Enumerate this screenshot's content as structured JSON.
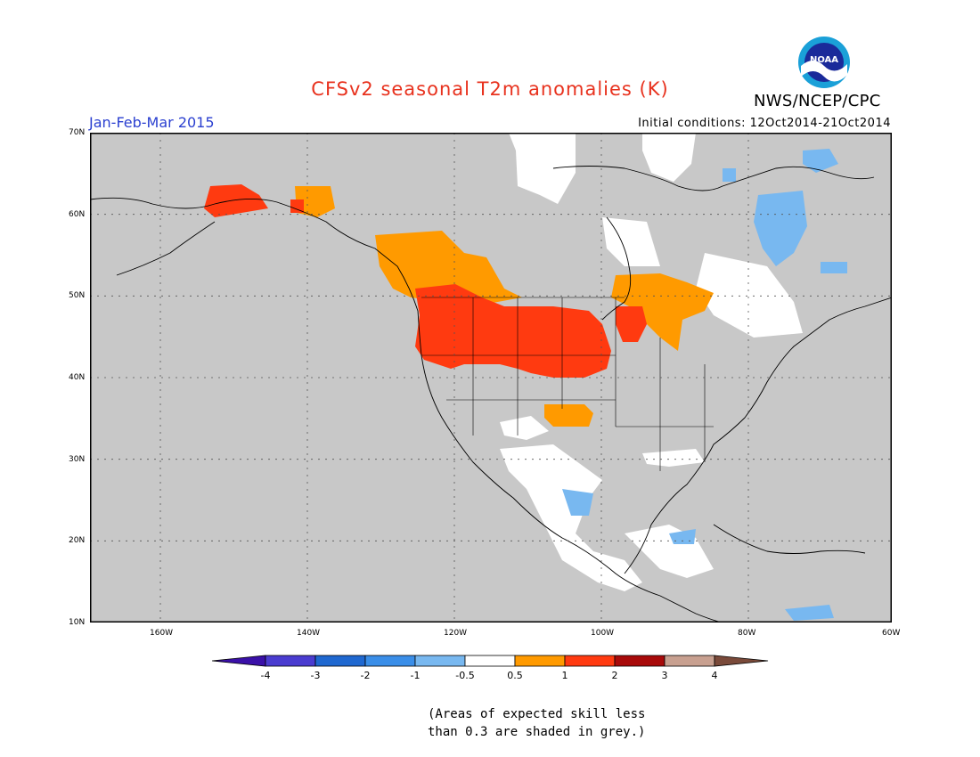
{
  "title": "CFSv2 seasonal T2m anomalies (K)",
  "period": "Jan-Feb-Mar 2015",
  "initial_conditions": "Initial conditions: 12Oct2014-21Oct2014",
  "agency": "NWS/NCEP/CPC",
  "logo_text": "NOAA",
  "lat_labels": [
    "70N",
    "60N",
    "50N",
    "40N",
    "30N",
    "20N",
    "10N"
  ],
  "lon_labels": [
    "160W",
    "140W",
    "120W",
    "100W",
    "80W",
    "60W"
  ],
  "colorbar": {
    "labels": [
      "-4",
      "-3",
      "-2",
      "-1",
      "-0.5",
      "0.5",
      "1",
      "2",
      "3",
      "4"
    ],
    "colors": [
      "#3a10a8",
      "#4a3cd0",
      "#1f68d0",
      "#3a8ee8",
      "#78b8f0",
      "#ffffff",
      "#ff9a00",
      "#ff3a10",
      "#a80a0a",
      "#c8a090",
      "#7a4a3a"
    ]
  },
  "note": {
    "line1": "(Areas of expected skill less",
    "line2": "than 0.3 are shaded in grey.)"
  },
  "colors": {
    "grey_mask": "#c8c8c8",
    "neutral": "#ffffff",
    "warm_light": "#ff9a00",
    "warm": "#ff3a10",
    "cool_light": "#78b8f0"
  }
}
